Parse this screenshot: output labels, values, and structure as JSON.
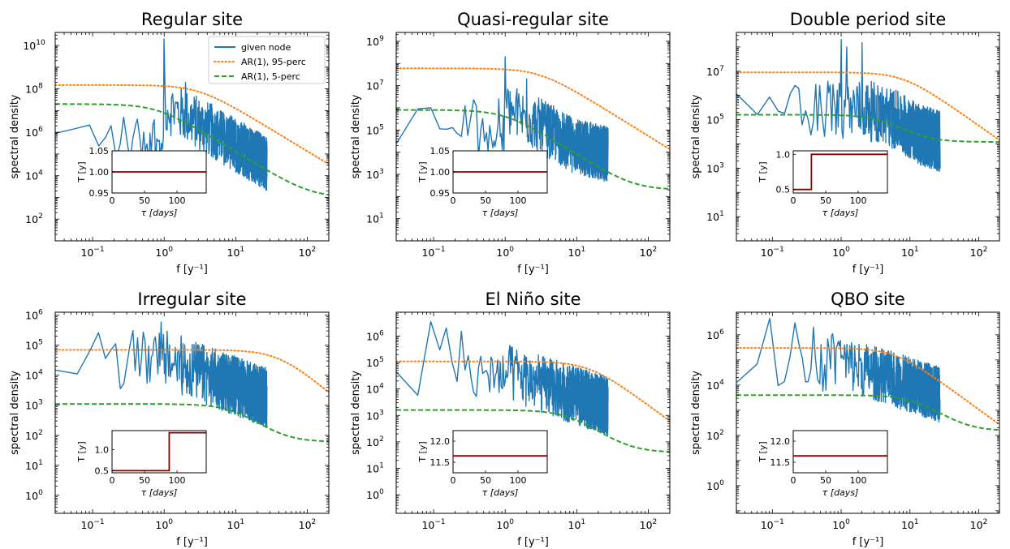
{
  "colors": {
    "node": "#1f77b4",
    "p95": "#ff7f0e",
    "p5": "#2ca02c",
    "inset": "#8b0000"
  },
  "legend": {
    "position": "upper-right of first panel",
    "entries": [
      {
        "key": "node",
        "label": "given node",
        "style": "solid"
      },
      {
        "key": "p95",
        "label": "AR(1), 95-perc",
        "style": "dotted"
      },
      {
        "key": "p5",
        "label": "AR(1), 5-perc",
        "style": "dashed"
      }
    ]
  },
  "chart_data": [
    {
      "type": "line",
      "title": "Regular site",
      "xlabel": "f [y⁻¹]",
      "ylabel": "spectral density",
      "xscale": "log",
      "yscale": "log",
      "xlim": [
        0.03,
        200
      ],
      "ylim_exp": [
        1,
        10.6
      ],
      "ytick_exps": [
        2,
        4,
        6,
        8,
        10
      ],
      "p95": {
        "level": 150000000.0,
        "fc": 3
      },
      "p5": {
        "level": 20000000.0,
        "fc": 0.8,
        "tail": 1000.0
      },
      "node": {
        "base": 1000000.0,
        "noise": 2.5,
        "peaks": [
          [
            1,
            20000000000.0
          ],
          [
            2,
            200000000.0
          ]
        ],
        "follow": "p5"
      },
      "inset": {
        "ylabel": "T [y]",
        "xlabel": "τ [days]",
        "xlim": [
          0,
          145
        ],
        "ylim": [
          0.95,
          1.05
        ],
        "yticks": [
          0.95,
          1.0,
          1.05
        ],
        "ytick_labels": [
          "0.95",
          "1.00",
          "1.05"
        ],
        "xticks": [
          0,
          50,
          100
        ],
        "steps": [
          [
            0,
            1.0
          ],
          [
            145,
            1.0
          ]
        ]
      }
    },
    {
      "type": "line",
      "title": "Quasi-regular site",
      "xlabel": "f [y⁻¹]",
      "ylabel": "spectral density",
      "xscale": "log",
      "yscale": "log",
      "xlim": [
        0.03,
        200
      ],
      "ylim_exp": [
        0,
        9.4
      ],
      "ytick_exps": [
        1,
        3,
        5,
        7,
        9
      ],
      "p95": {
        "level": 60000000.0,
        "fc": 3
      },
      "p5": {
        "level": 800000.0,
        "fc": 1,
        "tail": 200
      },
      "node": {
        "base": 300000.0,
        "noise": 2.5,
        "peaks": [
          [
            1,
            200000000.0
          ],
          [
            2,
            20000000.0
          ]
        ],
        "follow": "p5"
      },
      "inset": {
        "ylabel": "T [y]",
        "xlabel": "τ [days]",
        "xlim": [
          0,
          145
        ],
        "ylim": [
          0.95,
          1.05
        ],
        "yticks": [
          0.95,
          1.0,
          1.05
        ],
        "ytick_labels": [
          "0.95",
          "1.00",
          "1.05"
        ],
        "xticks": [
          0,
          50,
          100
        ],
        "steps": [
          [
            0,
            1.0
          ],
          [
            145,
            1.0
          ]
        ]
      }
    },
    {
      "type": "line",
      "title": "Double period site",
      "xlabel": "f [y⁻¹]",
      "ylabel": "spectral density",
      "xscale": "log",
      "yscale": "log",
      "xlim": [
        0.03,
        200
      ],
      "ylim_exp": [
        0,
        8.6
      ],
      "ytick_exps": [
        1,
        3,
        5,
        7
      ],
      "p95": {
        "level": 9000000.0,
        "fc": 8
      },
      "p5": {
        "level": 160000.0,
        "fc": 4,
        "tail": 12000.0
      },
      "node": {
        "base": 500000.0,
        "noise": 2.5,
        "peaks": [
          [
            1,
            200000000.0
          ],
          [
            1.2,
            100000000.0
          ],
          [
            2,
            150000000.0
          ],
          [
            2.4,
            40000000.0
          ]
        ],
        "follow": "p5"
      },
      "inset": {
        "ylabel": "T [y]",
        "xlabel": "τ [days]",
        "xlim": [
          0,
          145
        ],
        "ylim": [
          0.45,
          1.05
        ],
        "yticks": [
          0.5,
          1.0
        ],
        "ytick_labels": [
          "0.5",
          "1.0"
        ],
        "xticks": [
          0,
          50,
          100
        ],
        "steps": [
          [
            0,
            0.5
          ],
          [
            28,
            0.5
          ],
          [
            28,
            1.0
          ],
          [
            145,
            1.0
          ]
        ]
      }
    },
    {
      "type": "line",
      "title": "Irregular site",
      "xlabel": "f [y⁻¹]",
      "ylabel": "spectral density",
      "xscale": "log",
      "yscale": "log",
      "xlim": [
        0.03,
        200
      ],
      "ylim_exp": [
        -0.6,
        6.1
      ],
      "ytick_exps": [
        0,
        1,
        2,
        3,
        4,
        5,
        6
      ],
      "p95": {
        "level": 70000.0,
        "fc": 40
      },
      "p5": {
        "level": 1100.0,
        "fc": 10,
        "tail": 60
      },
      "node": {
        "base": 60000.0,
        "noise": 2.0,
        "peaks": [
          [
            0.9,
            600000.0
          ]
        ],
        "follow": "p5"
      },
      "inset": {
        "ylabel": "T [y]",
        "xlabel": "τ [days]",
        "xlim": [
          0,
          145
        ],
        "ylim": [
          0.45,
          1.45
        ],
        "yticks": [
          0.5,
          1.0
        ],
        "ytick_labels": [
          "0.5",
          "1.0"
        ],
        "xticks": [
          0,
          50,
          100
        ],
        "steps": [
          [
            0,
            0.5
          ],
          [
            88,
            0.5
          ],
          [
            88,
            1.4
          ],
          [
            145,
            1.4
          ]
        ]
      }
    },
    {
      "type": "line",
      "title": "El Niño site",
      "xlabel": "f [y⁻¹]",
      "ylabel": "spectral density",
      "xscale": "log",
      "yscale": "log",
      "xlim": [
        0.03,
        200
      ],
      "ylim_exp": [
        -0.7,
        6.9
      ],
      "ytick_exps": [
        0,
        1,
        2,
        3,
        4,
        5,
        6
      ],
      "p95": {
        "level": 110000.0,
        "fc": 15
      },
      "p5": {
        "level": 1600.0,
        "fc": 8,
        "tail": 40
      },
      "node": {
        "base": 80000.0,
        "noise": 2.2,
        "peaks": [
          [
            0.085,
            3500000.0
          ],
          [
            0.16,
            2000000.0
          ],
          [
            0.25,
            1500000.0
          ]
        ],
        "follow": "p5"
      },
      "inset": {
        "ylabel": "T [y]",
        "xlabel": "τ [days]",
        "xlim": [
          0,
          145
        ],
        "ylim": [
          11.25,
          12.25
        ],
        "yticks": [
          11.5,
          12.0
        ],
        "ytick_labels": [
          "11.5",
          "12.0"
        ],
        "xticks": [
          0,
          50,
          100
        ],
        "steps": [
          [
            0,
            11.65
          ],
          [
            145,
            11.65
          ]
        ]
      }
    },
    {
      "type": "line",
      "title": "QBO site",
      "xlabel": "f [y⁻¹]",
      "ylabel": "spectral density",
      "xscale": "log",
      "yscale": "log",
      "xlim": [
        0.03,
        200
      ],
      "ylim_exp": [
        -1.1,
        6.9
      ],
      "ytick_exps": [
        0,
        2,
        4,
        6
      ],
      "p95": {
        "level": 300000.0,
        "fc": 6
      },
      "p5": {
        "level": 4000.0,
        "fc": 12,
        "tail": 150
      },
      "node": {
        "base": 150000.0,
        "noise": 2.2,
        "peaks": [
          [
            0.1,
            4500000.0
          ],
          [
            0.2,
            3000000.0
          ],
          [
            0.4,
            2000000.0
          ]
        ],
        "follow": "p5"
      },
      "inset": {
        "ylabel": "T [y]",
        "xlabel": "τ [days]",
        "xlim": [
          0,
          145
        ],
        "ylim": [
          11.25,
          12.25
        ],
        "yticks": [
          11.5,
          12.0
        ],
        "ytick_labels": [
          "11.5",
          "12.0"
        ],
        "xticks": [
          0,
          50,
          100
        ],
        "steps": [
          [
            0,
            11.65
          ],
          [
            145,
            11.65
          ]
        ]
      }
    }
  ]
}
